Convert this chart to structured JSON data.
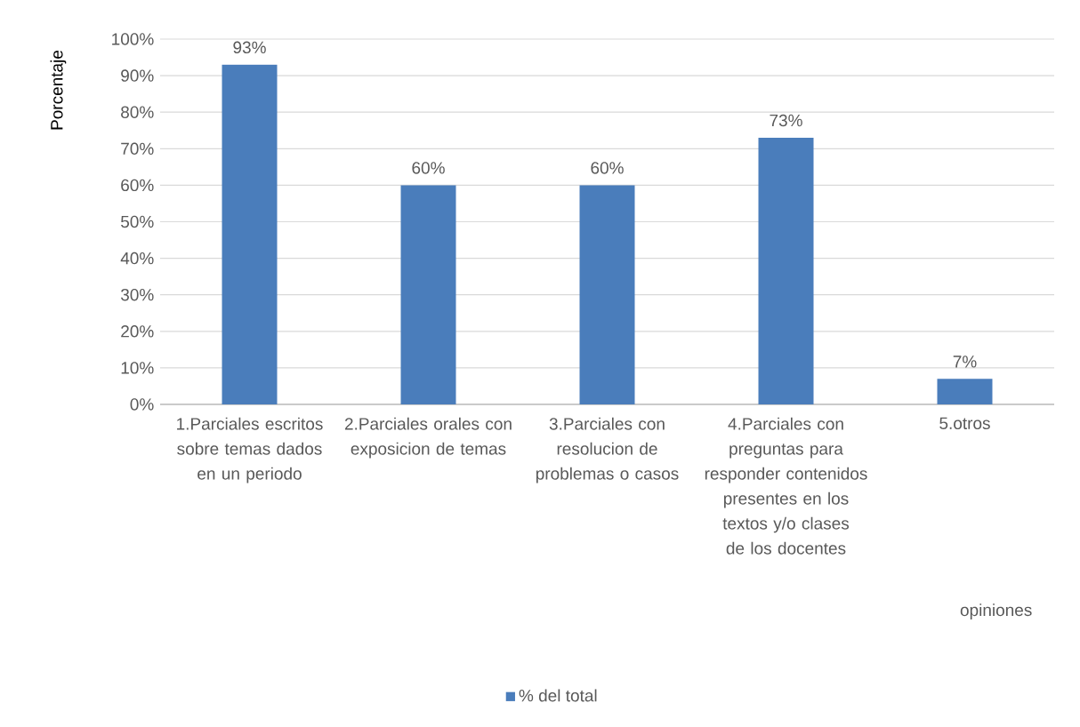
{
  "chart_data": {
    "type": "bar",
    "ylabel": "Porcentaje",
    "xlabel": "opiniones",
    "categories": [
      "1.Parciales escritos sobre temas dados en un periodo",
      "2.Parciales orales con exposicion de temas",
      "3.Parciales con resolucion de problemas o casos",
      "4.Parciales con preguntas para responder contenidos presentes en los textos y/o clases de los docentes",
      "5.otros"
    ],
    "series": [
      {
        "name": "% del total",
        "color": "#4a7dbb",
        "values": [
          93,
          60,
          60,
          73,
          7
        ],
        "value_labels": [
          "93%",
          "60%",
          "60%",
          "73%",
          "7%"
        ]
      }
    ],
    "ylim": [
      0,
      100
    ],
    "yticks": [
      {
        "value": 0,
        "label": "0%"
      },
      {
        "value": 10,
        "label": "10%"
      },
      {
        "value": 20,
        "label": "20%"
      },
      {
        "value": 30,
        "label": "30%"
      },
      {
        "value": 40,
        "label": "40%"
      },
      {
        "value": 50,
        "label": "50%"
      },
      {
        "value": 60,
        "label": "60%"
      },
      {
        "value": 70,
        "label": "70%"
      },
      {
        "value": 80,
        "label": "80%"
      },
      {
        "value": 90,
        "label": "90%"
      },
      {
        "value": 100,
        "label": "100%"
      }
    ],
    "grid": "y",
    "legend": "bottom"
  }
}
